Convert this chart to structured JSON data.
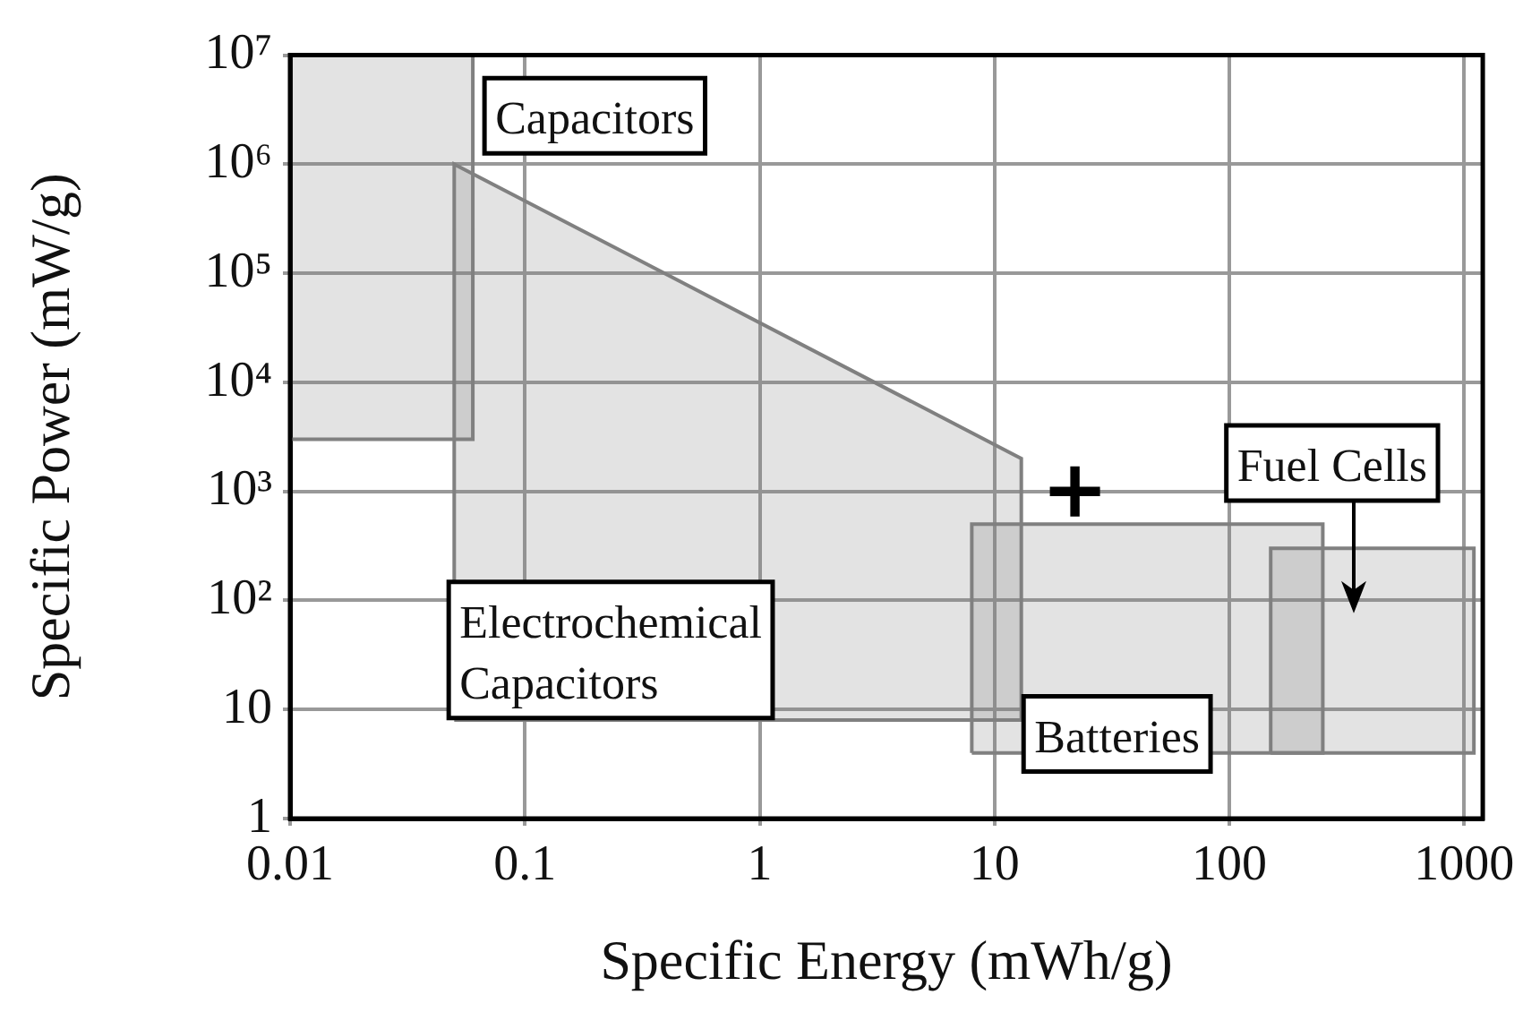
{
  "chart_data": {
    "type": "area",
    "xlabel": "Specific Energy (mWh/g)",
    "ylabel": "Specific Power (mW/g)",
    "log": "xy",
    "grid": true,
    "legend": false,
    "xlim": [
      0.01,
      1200
    ],
    "xticks": [
      0.01,
      0.1,
      1,
      10,
      100,
      1000
    ],
    "ylim": [
      1,
      10000000
    ],
    "yticks": [
      1,
      10,
      {
        "value": 100,
        "label": "10²"
      },
      {
        "value": 1000,
        "label": "10³"
      },
      {
        "value": 10000,
        "label": "10⁴"
      },
      {
        "value": 100000,
        "label": "10⁵"
      },
      {
        "value": 1000000,
        "label": "10⁶"
      },
      {
        "value": 10000000,
        "label": "10⁷"
      }
    ],
    "series": [
      {
        "name": "Capacitors",
        "color": "#808080",
        "x": [
          0.01,
          0.01,
          0.06,
          0.06,
          0.01
        ],
        "values": [
          3000,
          10000000,
          10000000,
          3000,
          3000
        ]
      },
      {
        "name": "Electrochemical Capacitors",
        "color": "#808080",
        "x": [
          0.05,
          0.05,
          13,
          13,
          0.05
        ],
        "values": [
          8,
          1000000,
          2000,
          8,
          8
        ]
      },
      {
        "name": "Batteries",
        "color": "#808080",
        "x": [
          8,
          8,
          250,
          250,
          8
        ],
        "values": [
          4,
          500,
          500,
          4,
          4
        ]
      },
      {
        "name": "Fuel Cells",
        "color": "#808080",
        "x": [
          150,
          150,
          1100,
          1100,
          150
        ],
        "values": [
          4,
          300,
          300,
          4,
          4
        ]
      },
      {
        "type": "scatter",
        "color": "#000000",
        "marker": "cross",
        "x": [
          22
        ],
        "values": [
          1000
        ]
      }
    ]
  }
}
